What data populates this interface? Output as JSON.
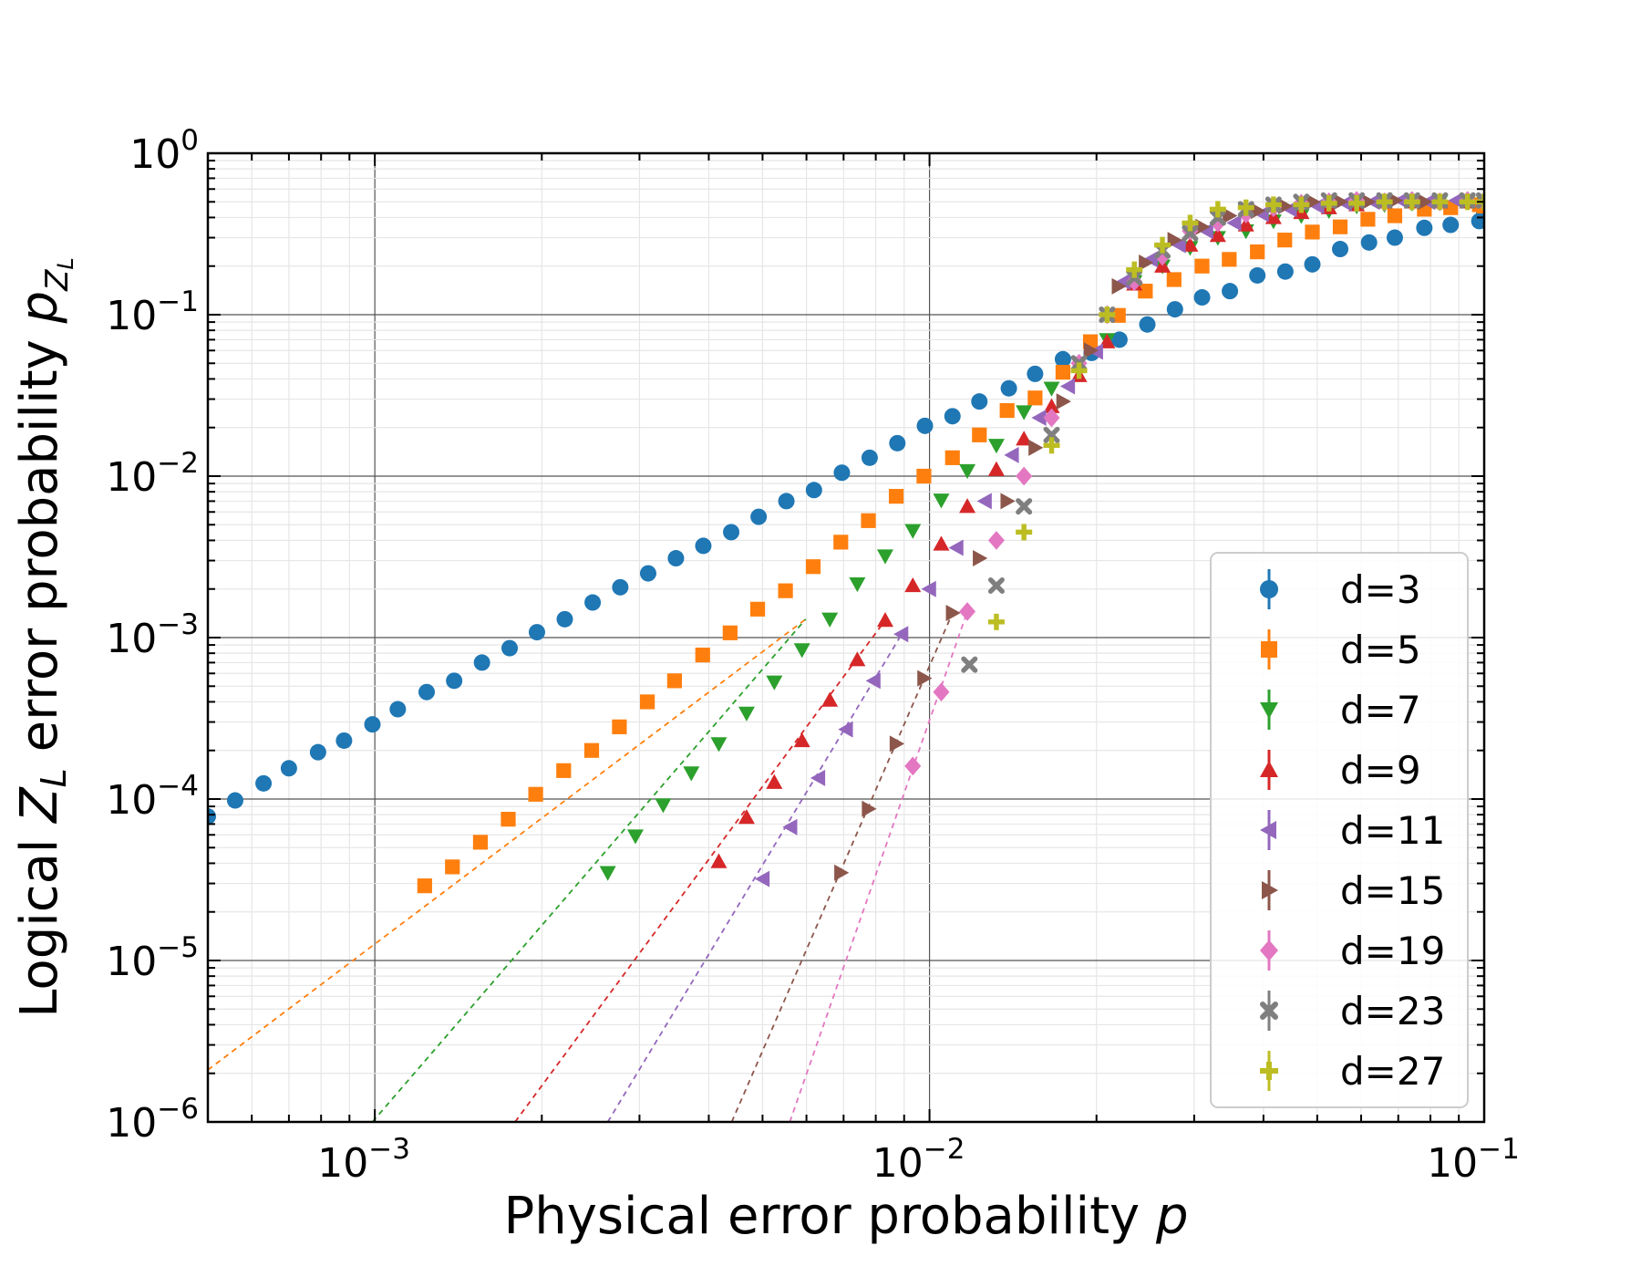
{
  "chart_data": {
    "type": "scatter",
    "xlabel": "Physical error probability p",
    "ylabel": "Logical Z_L error probability p_{Z_L}",
    "x_scale": "log",
    "y_scale": "log",
    "xlim": [
      0.0005,
      0.1
    ],
    "ylim": [
      1e-06,
      1
    ],
    "grid": true,
    "legend_position": "lower-right",
    "x_ticks": [
      {
        "base": "10",
        "exp": "−3",
        "value": 0.001
      },
      {
        "base": "10",
        "exp": "−2",
        "value": 0.01
      },
      {
        "base": "10",
        "exp": "−1",
        "value": 0.1
      }
    ],
    "y_ticks": [
      {
        "base": "10",
        "exp": "0",
        "value": 1
      },
      {
        "base": "10",
        "exp": "−1",
        "value": 0.1
      },
      {
        "base": "10",
        "exp": "−2",
        "value": 0.01
      },
      {
        "base": "10",
        "exp": "−3",
        "value": 0.001
      },
      {
        "base": "10",
        "exp": "−4",
        "value": 0.0001
      },
      {
        "base": "10",
        "exp": "−5",
        "value": 1e-05
      },
      {
        "base": "10",
        "exp": "−6",
        "value": 1e-06
      }
    ],
    "series": [
      {
        "name": "d=3",
        "color": "#1f77b4",
        "marker": "circle",
        "points": [
          [
            0.0005,
            7.8e-05
          ],
          [
            0.00056,
            9.8e-05
          ],
          [
            0.00063,
            0.000125
          ],
          [
            0.0007,
            0.000155
          ],
          [
            0.00079,
            0.000195
          ],
          [
            0.00088,
            0.00023
          ],
          [
            0.00099,
            0.00029
          ],
          [
            0.0011,
            0.00036
          ],
          [
            0.00124,
            0.00046
          ],
          [
            0.00139,
            0.00054
          ],
          [
            0.00156,
            0.0007
          ],
          [
            0.00175,
            0.00086
          ],
          [
            0.00196,
            0.00108
          ],
          [
            0.0022,
            0.0013
          ],
          [
            0.00247,
            0.00165
          ],
          [
            0.00277,
            0.00205
          ],
          [
            0.00311,
            0.0025
          ],
          [
            0.00349,
            0.0031
          ],
          [
            0.00391,
            0.0037
          ],
          [
            0.00439,
            0.0045
          ],
          [
            0.00492,
            0.0056
          ],
          [
            0.00552,
            0.007
          ],
          [
            0.00619,
            0.0082
          ],
          [
            0.00695,
            0.0105
          ],
          [
            0.0078,
            0.013
          ],
          [
            0.00875,
            0.016
          ],
          [
            0.00981,
            0.0205
          ],
          [
            0.011,
            0.0235
          ],
          [
            0.0123,
            0.029
          ],
          [
            0.0139,
            0.035
          ],
          [
            0.0155,
            0.043
          ],
          [
            0.0174,
            0.053
          ],
          [
            0.0196,
            0.058
          ],
          [
            0.022,
            0.07
          ],
          [
            0.0247,
            0.087
          ],
          [
            0.0277,
            0.108
          ],
          [
            0.031,
            0.128
          ],
          [
            0.0348,
            0.14
          ],
          [
            0.039,
            0.175
          ],
          [
            0.0438,
            0.185
          ],
          [
            0.049,
            0.205
          ],
          [
            0.055,
            0.255
          ],
          [
            0.062,
            0.28
          ],
          [
            0.069,
            0.3
          ],
          [
            0.078,
            0.345
          ],
          [
            0.087,
            0.36
          ],
          [
            0.098,
            0.38
          ],
          [
            0.1,
            0.42
          ]
        ]
      },
      {
        "name": "d=5",
        "color": "#ff7f0e",
        "marker": "square",
        "points": [
          [
            0.00123,
            2.9e-05
          ],
          [
            0.00138,
            3.8e-05
          ],
          [
            0.00155,
            5.4e-05
          ],
          [
            0.00174,
            7.5e-05
          ],
          [
            0.00195,
            0.000107
          ],
          [
            0.00219,
            0.00015
          ],
          [
            0.00246,
            0.0002
          ],
          [
            0.00276,
            0.00028
          ],
          [
            0.0031,
            0.0004
          ],
          [
            0.00347,
            0.00054
          ],
          [
            0.0039,
            0.00078
          ],
          [
            0.00437,
            0.00107
          ],
          [
            0.0049,
            0.0015
          ],
          [
            0.0055,
            0.00195
          ],
          [
            0.00617,
            0.00275
          ],
          [
            0.00692,
            0.0039
          ],
          [
            0.00776,
            0.0053
          ],
          [
            0.00871,
            0.0075
          ],
          [
            0.00977,
            0.01
          ],
          [
            0.011,
            0.013
          ],
          [
            0.0123,
            0.018
          ],
          [
            0.0138,
            0.0255
          ],
          [
            0.0155,
            0.0305
          ],
          [
            0.0174,
            0.044
          ],
          [
            0.0195,
            0.068
          ],
          [
            0.0219,
            0.099
          ],
          [
            0.0245,
            0.14
          ],
          [
            0.0276,
            0.165
          ],
          [
            0.031,
            0.2
          ],
          [
            0.0347,
            0.22
          ],
          [
            0.039,
            0.245
          ],
          [
            0.0437,
            0.29
          ],
          [
            0.049,
            0.325
          ],
          [
            0.055,
            0.35
          ],
          [
            0.0617,
            0.39
          ],
          [
            0.069,
            0.41
          ],
          [
            0.078,
            0.45
          ],
          [
            0.087,
            0.46
          ],
          [
            0.098,
            0.48
          ],
          [
            0.1,
            0.47
          ]
        ],
        "fit": [
          [
            0.0005,
            2.1e-06
          ],
          [
            0.00598,
            0.0013
          ]
        ]
      },
      {
        "name": "d=7",
        "color": "#2ca02c",
        "marker": "triangle-down",
        "points": [
          [
            0.00263,
            3.5e-05
          ],
          [
            0.00295,
            5.9e-05
          ],
          [
            0.00331,
            9.2e-05
          ],
          [
            0.00372,
            0.000145
          ],
          [
            0.00417,
            0.00022
          ],
          [
            0.00468,
            0.00034
          ],
          [
            0.00525,
            0.00053
          ],
          [
            0.00589,
            0.00084
          ],
          [
            0.00661,
            0.0013
          ],
          [
            0.00741,
            0.00215
          ],
          [
            0.00832,
            0.0032
          ],
          [
            0.00933,
            0.0046
          ],
          [
            0.0105,
            0.0071
          ],
          [
            0.0117,
            0.0108
          ],
          [
            0.0132,
            0.0155
          ],
          [
            0.0148,
            0.025
          ],
          [
            0.0166,
            0.035
          ],
          [
            0.0186,
            0.05
          ],
          [
            0.0209,
            0.07
          ],
          [
            0.0234,
            0.16
          ],
          [
            0.0263,
            0.2
          ],
          [
            0.0295,
            0.26
          ],
          [
            0.0331,
            0.3
          ],
          [
            0.0372,
            0.33
          ],
          [
            0.0417,
            0.38
          ],
          [
            0.0468,
            0.41
          ],
          [
            0.0525,
            0.44
          ],
          [
            0.0589,
            0.47
          ],
          [
            0.0661,
            0.48
          ],
          [
            0.0741,
            0.49
          ],
          [
            0.0832,
            0.5
          ],
          [
            0.0933,
            0.5
          ],
          [
            0.1,
            0.5
          ]
        ],
        "fit": [
          [
            0.00099,
            1e-06
          ],
          [
            0.00598,
            0.0013
          ]
        ]
      },
      {
        "name": "d=9",
        "color": "#d62728",
        "marker": "triangle-up",
        "points": [
          [
            0.00417,
            4.1e-05
          ],
          [
            0.00468,
            7.7e-05
          ],
          [
            0.00525,
            0.000127
          ],
          [
            0.00589,
            0.00023
          ],
          [
            0.00661,
            0.00041
          ],
          [
            0.00741,
            0.00073
          ],
          [
            0.00832,
            0.00128
          ],
          [
            0.00933,
            0.0021
          ],
          [
            0.0105,
            0.0038
          ],
          [
            0.0117,
            0.0065
          ],
          [
            0.0132,
            0.011
          ],
          [
            0.0148,
            0.017
          ],
          [
            0.0166,
            0.027
          ],
          [
            0.0186,
            0.042
          ],
          [
            0.0209,
            0.068
          ],
          [
            0.0234,
            0.155
          ],
          [
            0.0263,
            0.2
          ],
          [
            0.0295,
            0.27
          ],
          [
            0.0331,
            0.31
          ],
          [
            0.0372,
            0.36
          ],
          [
            0.0417,
            0.4
          ],
          [
            0.0468,
            0.43
          ],
          [
            0.0525,
            0.46
          ],
          [
            0.0589,
            0.48
          ],
          [
            0.0661,
            0.5
          ],
          [
            0.0741,
            0.5
          ],
          [
            0.0832,
            0.5
          ],
          [
            0.0933,
            0.5
          ]
        ],
        "fit": [
          [
            0.00179,
            1e-06
          ],
          [
            0.00832,
            0.00128
          ]
        ]
      },
      {
        "name": "d=11",
        "color": "#9467bd",
        "marker": "triangle-left",
        "points": [
          [
            0.00501,
            3.2e-05
          ],
          [
            0.00562,
            6.7e-05
          ],
          [
            0.00631,
            0.000135
          ],
          [
            0.00708,
            0.00027
          ],
          [
            0.00794,
            0.00054
          ],
          [
            0.00891,
            0.00105
          ],
          [
            0.01,
            0.002
          ],
          [
            0.0112,
            0.0036
          ],
          [
            0.0126,
            0.007
          ],
          [
            0.0141,
            0.0135
          ],
          [
            0.0158,
            0.023
          ],
          [
            0.0178,
            0.036
          ],
          [
            0.02,
            0.059
          ],
          [
            0.0224,
            0.16
          ],
          [
            0.0251,
            0.22
          ],
          [
            0.0282,
            0.27
          ],
          [
            0.0316,
            0.33
          ],
          [
            0.0355,
            0.37
          ],
          [
            0.0398,
            0.42
          ],
          [
            0.0447,
            0.45
          ],
          [
            0.0501,
            0.47
          ],
          [
            0.0562,
            0.49
          ],
          [
            0.0631,
            0.5
          ],
          [
            0.0708,
            0.51
          ],
          [
            0.0794,
            0.5
          ],
          [
            0.0891,
            0.51
          ]
        ],
        "fit": [
          [
            0.00263,
            1e-06
          ],
          [
            0.00891,
            0.00105
          ]
        ]
      },
      {
        "name": "d=15",
        "color": "#8c564b",
        "marker": "triangle-right",
        "points": [
          [
            0.00692,
            3.5e-05
          ],
          [
            0.00776,
            8.7e-05
          ],
          [
            0.00871,
            0.00022
          ],
          [
            0.00977,
            0.00056
          ],
          [
            0.011,
            0.00142
          ],
          [
            0.0123,
            0.0031
          ],
          [
            0.0138,
            0.007
          ],
          [
            0.0155,
            0.015
          ],
          [
            0.0174,
            0.029
          ],
          [
            0.0195,
            0.06
          ],
          [
            0.0219,
            0.15
          ],
          [
            0.0245,
            0.21
          ],
          [
            0.0276,
            0.29
          ],
          [
            0.031,
            0.35
          ],
          [
            0.0347,
            0.41
          ],
          [
            0.039,
            0.44
          ],
          [
            0.0437,
            0.47
          ],
          [
            0.049,
            0.5
          ],
          [
            0.055,
            0.5
          ],
          [
            0.0617,
            0.5
          ],
          [
            0.069,
            0.51
          ],
          [
            0.078,
            0.5
          ]
        ],
        "fit": [
          [
            0.0044,
            1e-06
          ],
          [
            0.011,
            0.00142
          ]
        ]
      },
      {
        "name": "d=19",
        "color": "#e377c2",
        "marker": "diamond",
        "points": [
          [
            0.00933,
            0.00016
          ],
          [
            0.0105,
            0.00046
          ],
          [
            0.0117,
            0.00145
          ],
          [
            0.0132,
            0.004
          ],
          [
            0.0148,
            0.01
          ],
          [
            0.0166,
            0.023
          ],
          [
            0.0186,
            0.05
          ],
          [
            0.0209,
            0.1
          ],
          [
            0.0234,
            0.16
          ],
          [
            0.0263,
            0.23
          ],
          [
            0.0295,
            0.33
          ],
          [
            0.0331,
            0.37
          ],
          [
            0.0372,
            0.42
          ],
          [
            0.0417,
            0.46
          ],
          [
            0.0468,
            0.49
          ],
          [
            0.0525,
            0.5
          ],
          [
            0.0589,
            0.51
          ],
          [
            0.0661,
            0.5
          ],
          [
            0.0741,
            0.51
          ],
          [
            0.0832,
            0.5
          ],
          [
            0.0933,
            0.51
          ],
          [
            0.1,
            0.5
          ]
        ],
        "fit": [
          [
            0.0056,
            1e-06
          ],
          [
            0.0117,
            0.00145
          ]
        ]
      },
      {
        "name": "d=23",
        "color": "#7f7f7f",
        "marker": "x",
        "points": [
          [
            0.0118,
            0.00068
          ],
          [
            0.0132,
            0.0021
          ],
          [
            0.0148,
            0.0065
          ],
          [
            0.0166,
            0.018
          ],
          [
            0.0186,
            0.05
          ],
          [
            0.0209,
            0.1
          ],
          [
            0.0234,
            0.17
          ],
          [
            0.0263,
            0.25
          ],
          [
            0.0295,
            0.32
          ],
          [
            0.0331,
            0.4
          ],
          [
            0.0372,
            0.45
          ],
          [
            0.0417,
            0.48
          ],
          [
            0.0468,
            0.5
          ],
          [
            0.0525,
            0.51
          ],
          [
            0.0589,
            0.51
          ],
          [
            0.0661,
            0.51
          ],
          [
            0.0741,
            0.51
          ],
          [
            0.0832,
            0.51
          ],
          [
            0.0933,
            0.51
          ],
          [
            0.1,
            0.51
          ]
        ]
      },
      {
        "name": "d=27",
        "color": "#bcbd22",
        "marker": "plus",
        "points": [
          [
            0.0132,
            0.00125
          ],
          [
            0.0148,
            0.0045
          ],
          [
            0.0166,
            0.0155
          ],
          [
            0.0186,
            0.045
          ],
          [
            0.0209,
            0.1
          ],
          [
            0.0234,
            0.19
          ],
          [
            0.0263,
            0.27
          ],
          [
            0.0295,
            0.37
          ],
          [
            0.0331,
            0.45
          ],
          [
            0.0372,
            0.46
          ],
          [
            0.0417,
            0.48
          ],
          [
            0.0468,
            0.48
          ],
          [
            0.0525,
            0.49
          ],
          [
            0.0589,
            0.49
          ],
          [
            0.0661,
            0.5
          ],
          [
            0.0741,
            0.5
          ],
          [
            0.0832,
            0.5
          ],
          [
            0.0933,
            0.5
          ],
          [
            0.1,
            0.5
          ]
        ]
      }
    ]
  }
}
